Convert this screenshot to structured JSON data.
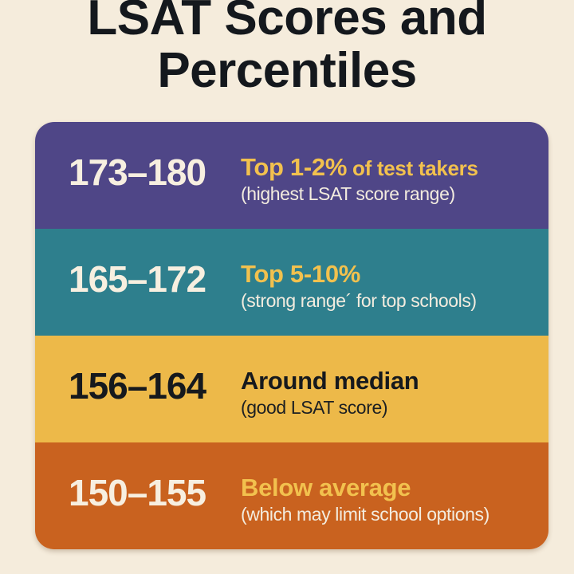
{
  "title": {
    "line1": "LSAT Scores and",
    "line2": "Percentiles"
  },
  "colors": {
    "background": "#f5ecdc",
    "title_text": "#14181d",
    "purple": "#4f4687",
    "teal": "#2e7f8d",
    "yellow": "#edb949",
    "orange": "#c9621f",
    "cream_text": "#f7efe0",
    "gold_text": "#f2c14e",
    "dark_text": "#16191d"
  },
  "bands": [
    {
      "score_range": "173–180",
      "headline": "Top 1-2%",
      "headline_suffix": " of test takers",
      "subtext": "(highest LSAT score range)",
      "bg": "#4f4687",
      "score_color": "#f7efe0",
      "headline_color": "#f2c14e",
      "sub_color": "#f3ecdf"
    },
    {
      "score_range": "165–172",
      "headline": "Top 5-10%",
      "headline_suffix": "",
      "subtext": "(strong range´ for top schools)",
      "bg": "#2e7f8d",
      "score_color": "#f7efe0",
      "headline_color": "#f2c14e",
      "sub_color": "#f3ecdf"
    },
    {
      "score_range": "156–164",
      "headline": "Around median",
      "headline_suffix": "",
      "subtext": "(good LSAT score)",
      "bg": "#edb949",
      "score_color": "#16191d",
      "headline_color": "#16191d",
      "sub_color": "#1c1f22"
    },
    {
      "score_range": "150–155",
      "headline": "Below average",
      "headline_suffix": "",
      "subtext": "(which may limit school options)",
      "bg": "#c9621f",
      "score_color": "#f7efe0",
      "headline_color": "#f2c14e",
      "sub_color": "#f3ecdf"
    }
  ]
}
